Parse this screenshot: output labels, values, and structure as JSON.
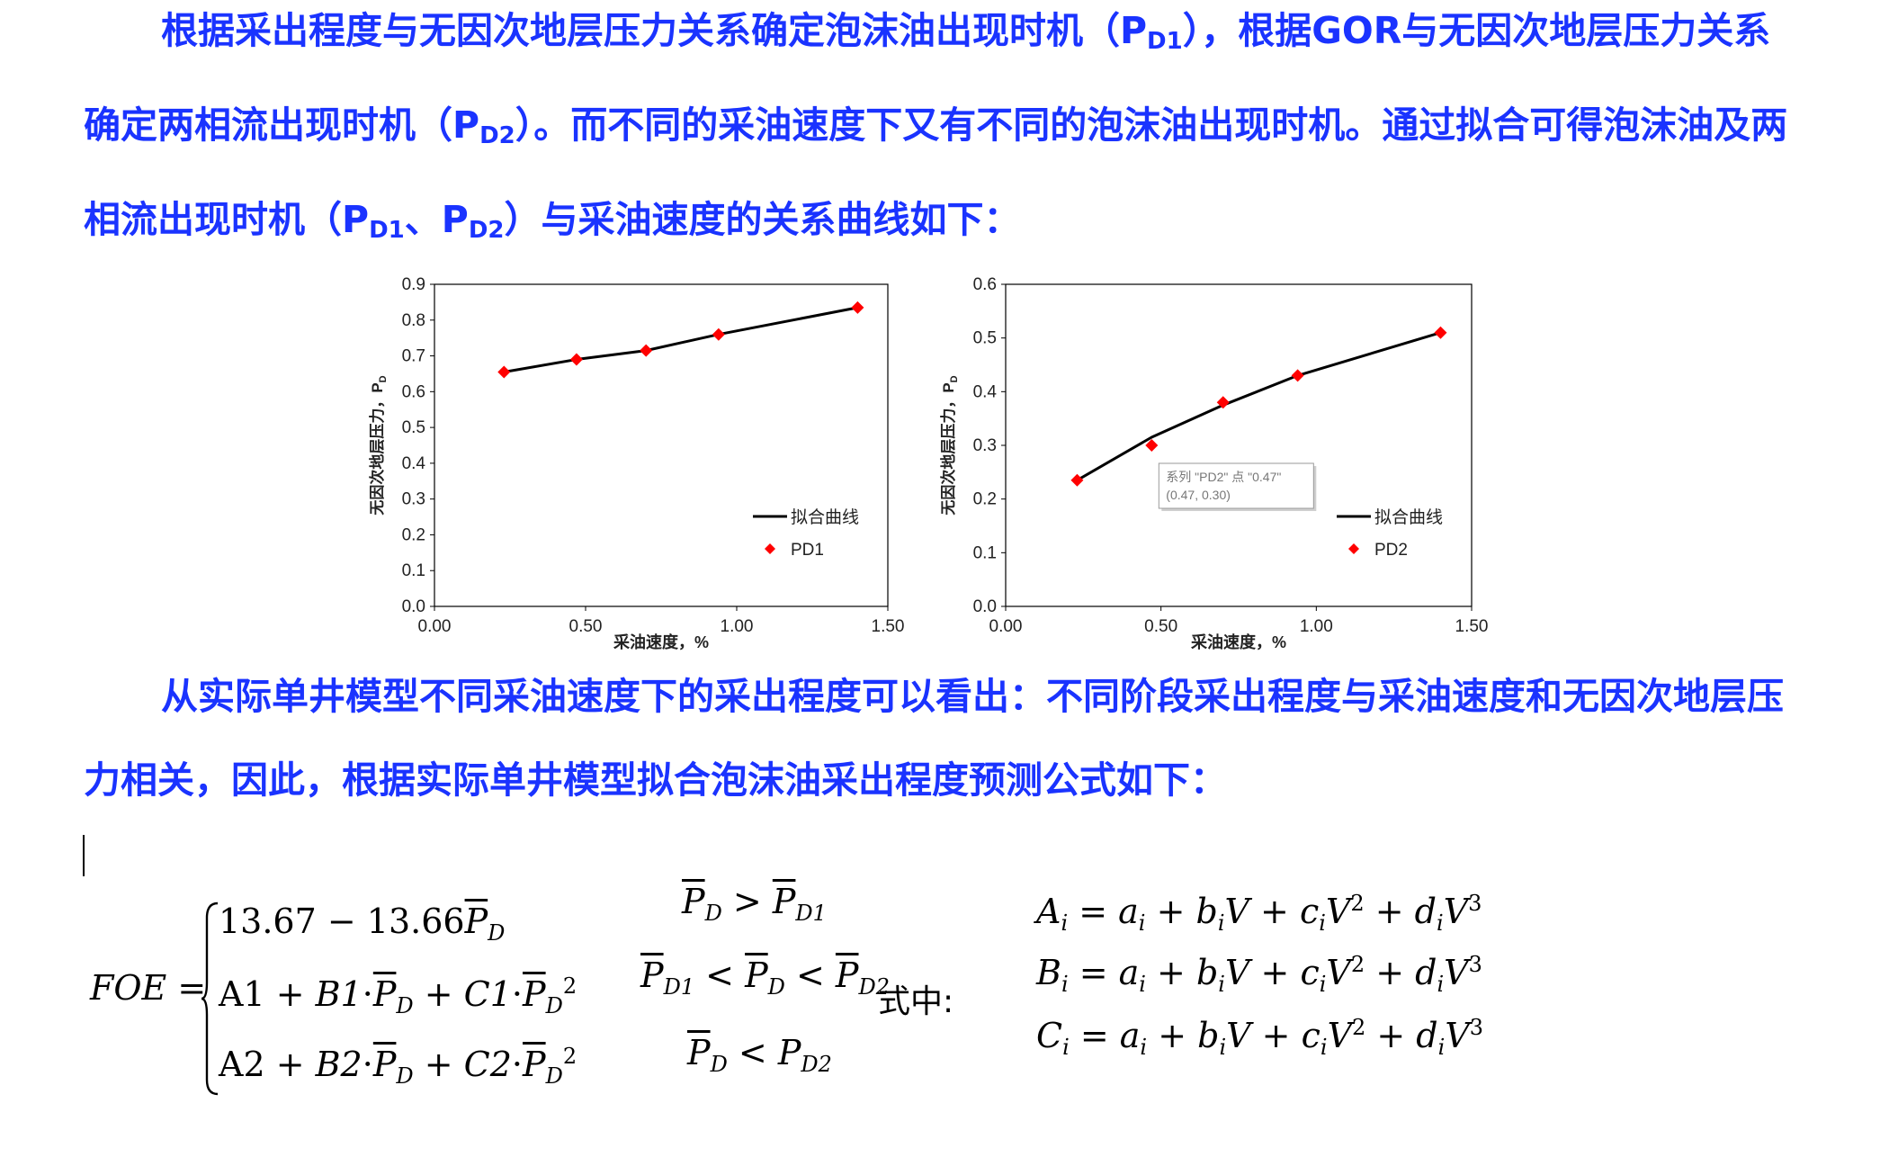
{
  "paragraph1": {
    "seg1": "根据采出程度与无因次地层压力关系确定泡沫油出现时机（P",
    "seg1_sub": "D1",
    "seg2": "），根据GOR与无因次地层压力关系确定两相流出现时机（P",
    "seg2_sub": "D2",
    "seg3": "）。而不同的采油速度下又有不同的泡沫油出现时机。通过拟合可得泡沫油及两相流出现时机（P",
    "seg3_sub": "D1",
    "seg4": "、P",
    "seg4_sub": "D2",
    "seg5": "）与采油速度的关系曲线如下："
  },
  "paragraph2": "从实际单井模型不同采油速度下的采出程度可以看出：不同阶段采出程度与采油速度和无因次地层压力相关，因此，根据实际单井模型拟合泡沫油采出程度预测公式如下：",
  "chart_data": [
    {
      "type": "scatter",
      "title": "",
      "xlabel": "采油速度，%",
      "ylabel": "无因次地层压力，P",
      "ylabel_sub": "D",
      "xlim": [
        0,
        1.5
      ],
      "ylim": [
        0,
        0.9
      ],
      "xticks": [
        "0.00",
        "0.50",
        "1.00",
        "1.50"
      ],
      "yticks": [
        "0.0",
        "0.1",
        "0.2",
        "0.3",
        "0.4",
        "0.5",
        "0.6",
        "0.7",
        "0.8",
        "0.9"
      ],
      "series": [
        {
          "name": "拟合曲线",
          "kind": "line",
          "color": "#000000",
          "x": [
            0.23,
            0.47,
            0.7,
            0.94,
            1.4
          ],
          "y": [
            0.655,
            0.69,
            0.715,
            0.76,
            0.835
          ]
        },
        {
          "name": "PD1",
          "kind": "marker",
          "color": "#ff0000",
          "x": [
            0.23,
            0.47,
            0.7,
            0.94,
            1.4
          ],
          "y": [
            0.655,
            0.69,
            0.715,
            0.76,
            0.835
          ]
        }
      ],
      "legend_position": "bottom-right",
      "grid": false
    },
    {
      "type": "scatter",
      "title": "",
      "xlabel": "采油速度，%",
      "ylabel": "无因次地层压力，P",
      "ylabel_sub": "D",
      "xlim": [
        0,
        1.5
      ],
      "ylim": [
        0,
        0.6
      ],
      "xticks": [
        "0.00",
        "0.50",
        "1.00",
        "1.50"
      ],
      "yticks": [
        "0.0",
        "0.1",
        "0.2",
        "0.3",
        "0.4",
        "0.5",
        "0.6"
      ],
      "series": [
        {
          "name": "拟合曲线",
          "kind": "line",
          "color": "#000000",
          "x": [
            0.23,
            0.47,
            0.7,
            0.94,
            1.4
          ],
          "y": [
            0.235,
            0.315,
            0.375,
            0.43,
            0.51
          ]
        },
        {
          "name": "PD2",
          "kind": "marker",
          "color": "#ff0000",
          "x": [
            0.23,
            0.47,
            0.7,
            0.94,
            1.4
          ],
          "y": [
            0.235,
            0.3,
            0.38,
            0.43,
            0.51
          ]
        }
      ],
      "legend_position": "bottom-right",
      "grid": false,
      "tooltip": {
        "line1": "系列 \"PD2\" 点 \"0.47\"",
        "line2": "(0.47, 0.30)",
        "x": 0.47,
        "y": 0.3
      }
    }
  ],
  "formula": {
    "foe_label": "FOE =",
    "case1": "13.67 − 13.66",
    "case2_a": "A1 + ",
    "case2_b": "B1",
    "case2_c": " + ",
    "case2_d": "C1",
    "case3_a": "A2 + ",
    "case3_b": "B2",
    "case3_c": " + ",
    "case3_d": "C2",
    "sq": "2",
    "P": "P",
    "D": "D",
    "D1": "D1",
    "D2": "D2",
    "dot": "·",
    "gt": " > ",
    "lt": " < ",
    "shizhong": "式中:",
    "coefA_lhs": "A",
    "coefB_lhs": "B",
    "coefC_lhs": "C",
    "i": "i",
    "eq": " = ",
    "a": "a",
    "b": "b",
    "c": "c",
    "d": "d",
    "V": "V",
    "plus": " + ",
    "two": "2",
    "three": "3"
  }
}
